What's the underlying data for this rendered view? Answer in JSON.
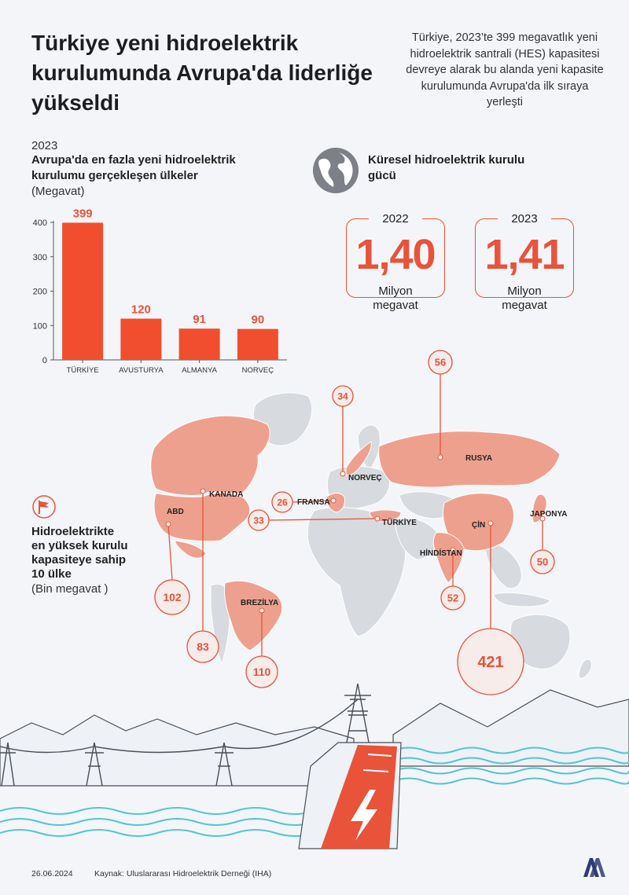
{
  "title": "Türkiye yeni hidroelektrik kurulumunda Avrupa'da liderliğe yükseldi",
  "intro": "Türkiye, 2023’te 399 megavatlık yeni hidroelektrik santrali (HES) kapasitesi devreye alarak bu alanda yeni kapasite kurulumunda Avrupa'da ilk sıraya yerleşti",
  "europe": {
    "year": "2023",
    "title": "Avrupa'da en fazla yeni hidroelektrik kurulumu gerçekleşen ülkeler",
    "unit": "(Megavat)"
  },
  "chart_data": {
    "type": "bar",
    "title": "Avrupa'da en fazla yeni hidroelektrik kurulumu gerçekleşen ülkeler",
    "ylabel": "(Megavat)",
    "categories": [
      "TÜRKİYE",
      "AVUSTURYA",
      "ALMANYA",
      "NORVEÇ"
    ],
    "values": [
      399,
      120,
      91,
      90
    ],
    "ylim": [
      0,
      400
    ],
    "yticks": [
      0,
      100,
      200,
      300,
      400
    ],
    "grid": false,
    "bar_color": "#f04e2f"
  },
  "global": {
    "title": "Küresel hidroelektrik kurulu gücü",
    "stats": [
      {
        "year": "2022",
        "value": "1,40",
        "unit_line1": "Milyon",
        "unit_line2": "megavat"
      },
      {
        "year": "2023",
        "value": "1,41",
        "unit_line1": "Milyon",
        "unit_line2": "megavat"
      }
    ]
  },
  "top10": {
    "title_lines": [
      "Hidroelektrikte",
      "en yüksek kurulu",
      "kapasiteye sahip",
      "10 ülke"
    ],
    "unit": "(Bin megavat )",
    "countries": [
      {
        "name": "ÇİN",
        "value": "421"
      },
      {
        "name": "BREZİLYA",
        "value": "110"
      },
      {
        "name": "ABD",
        "value": "102"
      },
      {
        "name": "KANADA",
        "value": "83"
      },
      {
        "name": "RUSYA",
        "value": "56"
      },
      {
        "name": "HİNDİSTAN",
        "value": "52"
      },
      {
        "name": "JAPONYA",
        "value": "50"
      },
      {
        "name": "NORVEÇ",
        "value": "34"
      },
      {
        "name": "TÜRKİYE",
        "value": "33"
      },
      {
        "name": "FRANSA",
        "value": "26"
      }
    ]
  },
  "footer": {
    "date": "26.06.2024",
    "source": "Kaynak: Uluslararası Hidroelektrik Derneği (IHA)",
    "logo_text": "AA"
  },
  "colors": {
    "accent": "#e8533a",
    "bar": "#f04e2f",
    "land_highlight": "#eea08f",
    "land_other": "#d7dade",
    "background": "#f3f5f8",
    "water_lines": "#53c6d3"
  },
  "icons": [
    "globe-icon",
    "flag-icon",
    "lightning-icon",
    "news-agency-logo"
  ]
}
